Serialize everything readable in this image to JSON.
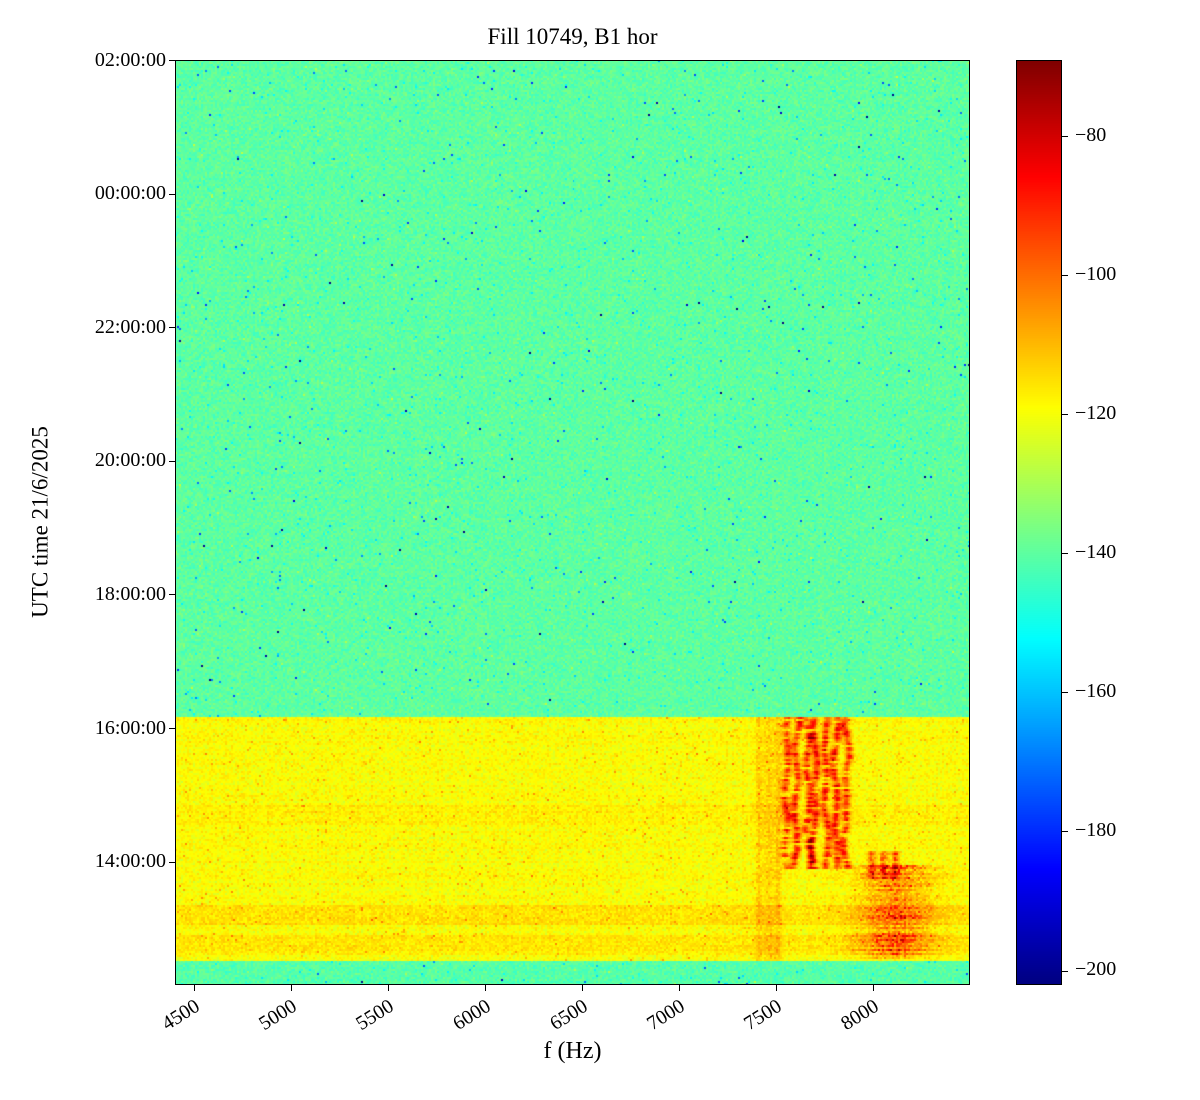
{
  "figure": {
    "background": "#ffffff",
    "text_color": "#000000"
  },
  "chart_data": {
    "type": "heatmap",
    "title": "Fill 10749, B1 hor",
    "xlabel": "f (Hz)",
    "ylabel": "UTC time 21/6/2025",
    "x_range": [
      4400,
      8500
    ],
    "x_ticks": [
      4500,
      5000,
      5500,
      6000,
      6500,
      7000,
      7500,
      8000
    ],
    "y_range_hours": [
      12.16,
      26.01
    ],
    "y_ticks": [
      {
        "label": "02:00:00",
        "hour": 26
      },
      {
        "label": "00:00:00",
        "hour": 24
      },
      {
        "label": "22:00:00",
        "hour": 22
      },
      {
        "label": "20:00:00",
        "hour": 20
      },
      {
        "label": "18:00:00",
        "hour": 18
      },
      {
        "label": "16:00:00",
        "hour": 16
      },
      {
        "label": "14:00:00",
        "hour": 14
      }
    ],
    "colorbar": {
      "colormap": "jet",
      "vmin": -202,
      "vmax": -69,
      "ticks": [
        -80,
        -100,
        -120,
        -140,
        -160,
        -180,
        -200
      ]
    },
    "regions": [
      {
        "name": "upper-noise-floor",
        "t_start_h": 16.17,
        "t_end_h": 26.01,
        "base_db": -140,
        "noise_db": 3.2,
        "elevated": false
      },
      {
        "name": "elevated-activity-band",
        "t_start_h": 12.53,
        "t_end_h": 16.17,
        "base_db": -119,
        "noise_db": 3.0,
        "elevated": true
      },
      {
        "name": "bottom-noise-floor",
        "t_start_h": 12.0,
        "t_end_h": 12.53,
        "base_db": -141,
        "noise_db": 3.2,
        "elevated": false
      }
    ],
    "features": {
      "wavy_lines": {
        "f_centers": [
          7565,
          7612,
          7658,
          7706,
          7758,
          7818,
          7868
        ],
        "t_start_h": 13.9,
        "t_end_h": 16.17,
        "peak_db": -87,
        "width_hz": 14
      },
      "faint_lines": {
        "f_centers": [
          7415,
          7465,
          7510
        ],
        "t_start_h": 12.53,
        "t_end_h": 16.17,
        "boost_db": 7,
        "width_hz": 14
      },
      "short_lines": {
        "f_centers": [
          7995,
          8055,
          8115
        ],
        "t_start_h": 13.75,
        "t_end_h": 14.15,
        "boost_db": 24,
        "width_hz": 15
      },
      "blotch": {
        "f_center": 8120,
        "f_sigma": 175,
        "t_start_h": 12.55,
        "t_end_h": 13.95,
        "max_boost_db": 30
      },
      "horizontal_bands": [
        {
          "t_start_h": 13.05,
          "t_end_h": 13.35,
          "boost_db": 4
        },
        {
          "t_start_h": 12.6,
          "t_end_h": 12.92,
          "boost_db": 3
        },
        {
          "t_start_h": 14.55,
          "t_end_h": 14.85,
          "boost_db": 2
        }
      ]
    }
  }
}
